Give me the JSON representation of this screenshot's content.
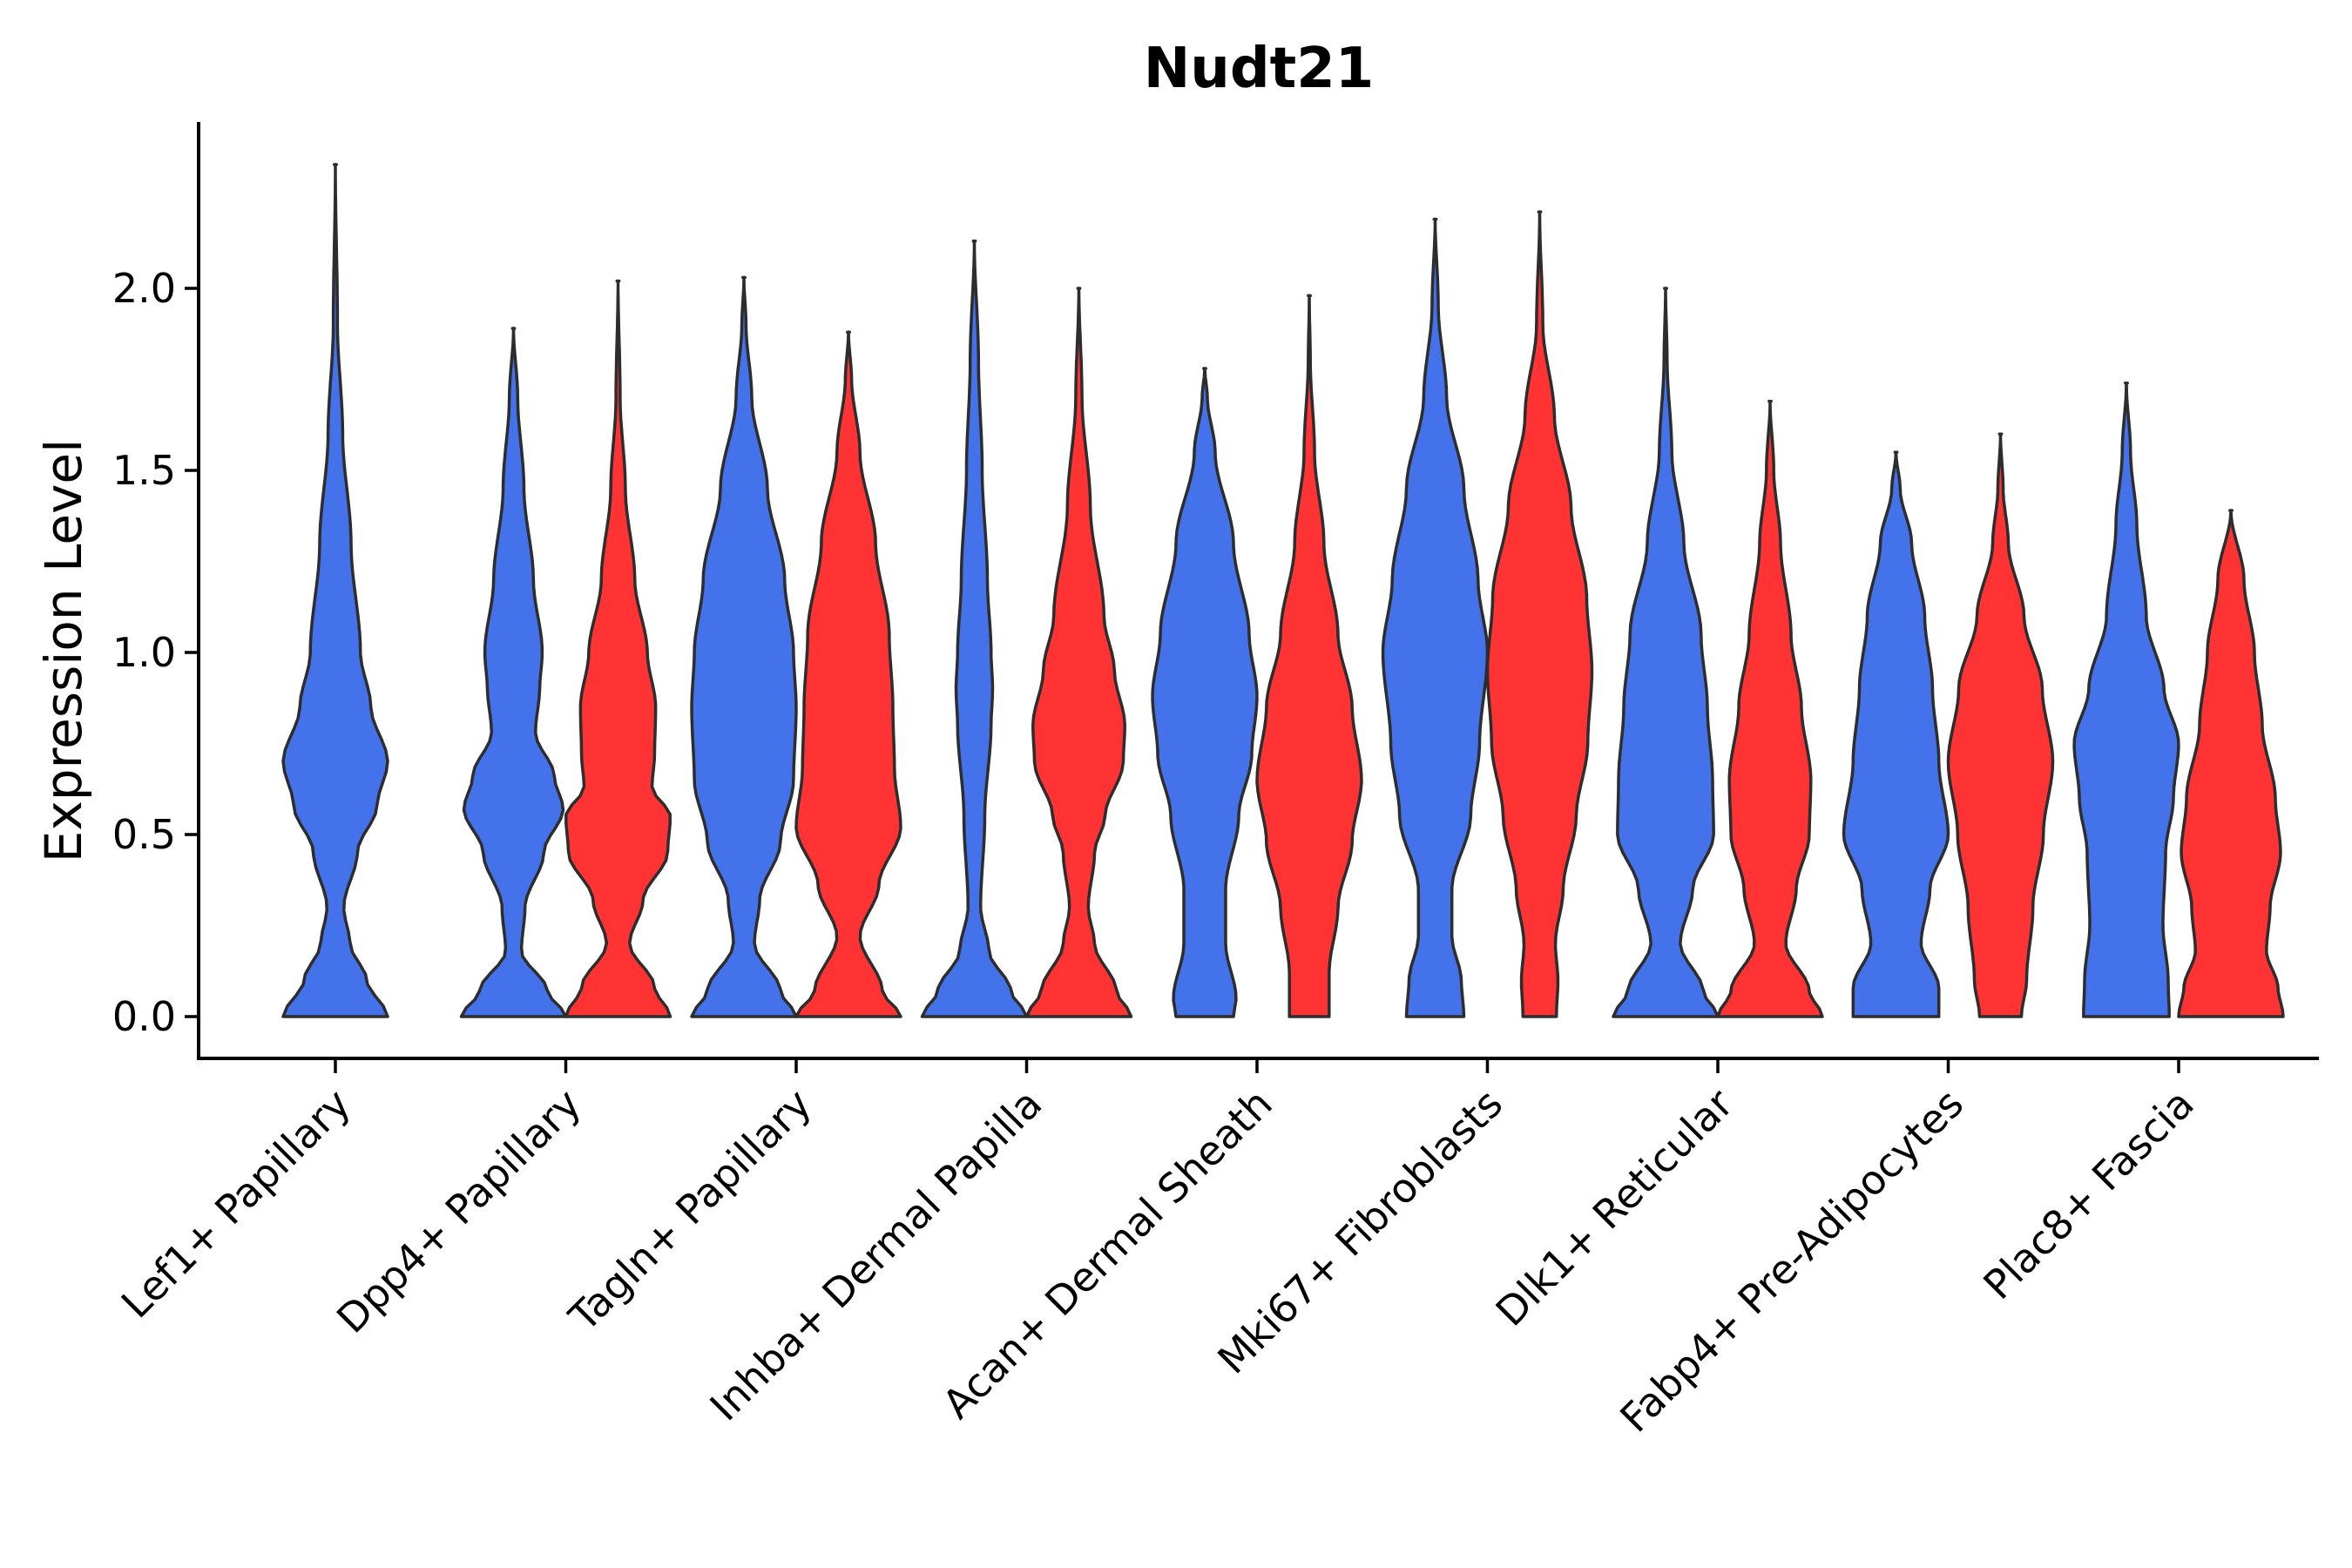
{
  "chart_data": {
    "type": "violin",
    "title": "Nudt21",
    "xlabel": "",
    "ylabel": "Expression Level",
    "ylim": [
      -0.12,
      2.45
    ],
    "yticks": [
      "0.0",
      "0.5",
      "1.0",
      "1.5",
      "2.0"
    ],
    "grid": false,
    "legend": "none",
    "series_colors": {
      "blue": "#4472EA",
      "red": "#FF3333"
    },
    "categories": [
      "Lef1+ Papillary",
      "Dpp4+ Papillary",
      "Tagln+ Papillary",
      "Inhba+ Dermal Papilla",
      "Acan+ Dermal Sheath",
      "Mki67+ Fibroblasts",
      "Dlk1+ Reticular",
      "Fabp4+ Pre-Adipocytes",
      "Plac8+ Fascia"
    ],
    "violins": [
      {
        "category": "Lef1+ Papillary",
        "series": "blue",
        "max": 2.34,
        "profile": [
          [
            0,
            1
          ],
          [
            0.1,
            0.6
          ],
          [
            0.2,
            0.28
          ],
          [
            0.3,
            0.16
          ],
          [
            0.45,
            0.42
          ],
          [
            0.58,
            0.8
          ],
          [
            0.7,
            1
          ],
          [
            0.85,
            0.68
          ],
          [
            1.0,
            0.48
          ],
          [
            1.3,
            0.3
          ],
          [
            1.6,
            0.14
          ],
          [
            1.9,
            0.04
          ],
          [
            2.34,
            0
          ]
        ]
      },
      {
        "category": "Dpp4+ Papillary",
        "series": "blue",
        "max": 1.89,
        "profile": [
          [
            0,
            1
          ],
          [
            0.07,
            0.65
          ],
          [
            0.18,
            0.15
          ],
          [
            0.3,
            0.22
          ],
          [
            0.45,
            0.58
          ],
          [
            0.57,
            0.95
          ],
          [
            0.66,
            0.78
          ],
          [
            0.78,
            0.42
          ],
          [
            0.9,
            0.5
          ],
          [
            1.0,
            0.55
          ],
          [
            1.2,
            0.38
          ],
          [
            1.45,
            0.2
          ],
          [
            1.7,
            0.08
          ],
          [
            1.89,
            0
          ]
        ]
      },
      {
        "category": "Dpp4+ Papillary",
        "series": "red",
        "max": 2.02,
        "profile": [
          [
            0,
            1
          ],
          [
            0.08,
            0.7
          ],
          [
            0.2,
            0.22
          ],
          [
            0.32,
            0.48
          ],
          [
            0.45,
            0.95
          ],
          [
            0.55,
            1
          ],
          [
            0.63,
            0.65
          ],
          [
            0.72,
            0.7
          ],
          [
            0.85,
            0.72
          ],
          [
            1.0,
            0.56
          ],
          [
            1.2,
            0.32
          ],
          [
            1.45,
            0.14
          ],
          [
            1.7,
            0.04
          ],
          [
            2.02,
            0
          ]
        ]
      },
      {
        "category": "Tagln+ Papillary",
        "series": "blue",
        "max": 2.03,
        "profile": [
          [
            0,
            1
          ],
          [
            0.07,
            0.7
          ],
          [
            0.2,
            0.2
          ],
          [
            0.32,
            0.3
          ],
          [
            0.48,
            0.7
          ],
          [
            0.65,
            0.95
          ],
          [
            0.85,
            1
          ],
          [
            1.0,
            0.95
          ],
          [
            1.2,
            0.78
          ],
          [
            1.45,
            0.45
          ],
          [
            1.7,
            0.15
          ],
          [
            1.9,
            0.04
          ],
          [
            2.03,
            0
          ]
        ]
      },
      {
        "category": "Tagln+ Papillary",
        "series": "red",
        "max": 1.88,
        "profile": [
          [
            0,
            1
          ],
          [
            0.07,
            0.65
          ],
          [
            0.22,
            0.22
          ],
          [
            0.36,
            0.58
          ],
          [
            0.52,
            1
          ],
          [
            0.68,
            0.88
          ],
          [
            0.85,
            0.85
          ],
          [
            1.05,
            0.78
          ],
          [
            1.3,
            0.52
          ],
          [
            1.55,
            0.22
          ],
          [
            1.75,
            0.06
          ],
          [
            1.88,
            0
          ]
        ]
      },
      {
        "category": "Inhba+ Dermal Papilla",
        "series": "blue",
        "max": 2.13,
        "profile": [
          [
            0,
            1
          ],
          [
            0.07,
            0.7
          ],
          [
            0.18,
            0.28
          ],
          [
            0.3,
            0.12
          ],
          [
            0.55,
            0.2
          ],
          [
            0.8,
            0.32
          ],
          [
            0.9,
            0.35
          ],
          [
            1.0,
            0.32
          ],
          [
            1.2,
            0.25
          ],
          [
            1.5,
            0.15
          ],
          [
            1.8,
            0.08
          ],
          [
            2.13,
            0
          ]
        ]
      },
      {
        "category": "Inhba+ Dermal Papilla",
        "series": "red",
        "max": 2.0,
        "profile": [
          [
            0,
            1
          ],
          [
            0.07,
            0.72
          ],
          [
            0.2,
            0.3
          ],
          [
            0.3,
            0.18
          ],
          [
            0.45,
            0.3
          ],
          [
            0.55,
            0.5
          ],
          [
            0.7,
            0.85
          ],
          [
            0.8,
            0.88
          ],
          [
            0.95,
            0.68
          ],
          [
            1.1,
            0.48
          ],
          [
            1.4,
            0.22
          ],
          [
            1.7,
            0.06
          ],
          [
            2.0,
            0
          ]
        ]
      },
      {
        "category": "Acan+ Dermal Sheath",
        "series": "blue",
        "max": 1.78,
        "profile": [
          [
            0,
            0.55
          ],
          [
            0.05,
            0.6
          ],
          [
            0.2,
            0.4
          ],
          [
            0.35,
            0.4
          ],
          [
            0.55,
            0.65
          ],
          [
            0.72,
            0.9
          ],
          [
            0.88,
            1
          ],
          [
            1.05,
            0.85
          ],
          [
            1.3,
            0.55
          ],
          [
            1.55,
            0.2
          ],
          [
            1.7,
            0.05
          ],
          [
            1.78,
            0
          ]
        ]
      },
      {
        "category": "Acan+ Dermal Sheath",
        "series": "red",
        "max": 1.98,
        "profile": [
          [
            0,
            0.38
          ],
          [
            0.12,
            0.38
          ],
          [
            0.3,
            0.55
          ],
          [
            0.48,
            0.82
          ],
          [
            0.65,
            1
          ],
          [
            0.85,
            0.82
          ],
          [
            1.05,
            0.55
          ],
          [
            1.3,
            0.28
          ],
          [
            1.55,
            0.1
          ],
          [
            1.8,
            0.02
          ],
          [
            1.98,
            0
          ]
        ]
      },
      {
        "category": "Mki67+ Fibroblasts",
        "series": "blue",
        "max": 2.19,
        "profile": [
          [
            0,
            0.55
          ],
          [
            0.1,
            0.5
          ],
          [
            0.22,
            0.32
          ],
          [
            0.35,
            0.32
          ],
          [
            0.55,
            0.68
          ],
          [
            0.75,
            0.85
          ],
          [
            1.0,
            1
          ],
          [
            1.2,
            0.82
          ],
          [
            1.45,
            0.55
          ],
          [
            1.7,
            0.22
          ],
          [
            1.95,
            0.06
          ],
          [
            2.19,
            0
          ]
        ]
      },
      {
        "category": "Mki67+ Fibroblasts",
        "series": "red",
        "max": 2.21,
        "profile": [
          [
            0,
            0.32
          ],
          [
            0.1,
            0.35
          ],
          [
            0.2,
            0.3
          ],
          [
            0.35,
            0.45
          ],
          [
            0.55,
            0.7
          ],
          [
            0.75,
            0.92
          ],
          [
            0.95,
            1
          ],
          [
            1.15,
            0.9
          ],
          [
            1.4,
            0.6
          ],
          [
            1.65,
            0.28
          ],
          [
            1.9,
            0.06
          ],
          [
            2.21,
            0
          ]
        ]
      },
      {
        "category": "Dlk1+ Reticular",
        "series": "blue",
        "max": 2.0,
        "profile": [
          [
            0,
            1
          ],
          [
            0.07,
            0.72
          ],
          [
            0.2,
            0.28
          ],
          [
            0.35,
            0.52
          ],
          [
            0.5,
            0.92
          ],
          [
            0.65,
            0.9
          ],
          [
            0.85,
            0.8
          ],
          [
            1.05,
            0.68
          ],
          [
            1.3,
            0.35
          ],
          [
            1.55,
            0.12
          ],
          [
            1.8,
            0.03
          ],
          [
            2.0,
            0
          ]
        ]
      },
      {
        "category": "Dlk1+ Reticular",
        "series": "red",
        "max": 1.69,
        "profile": [
          [
            0,
            1
          ],
          [
            0.07,
            0.75
          ],
          [
            0.2,
            0.3
          ],
          [
            0.35,
            0.5
          ],
          [
            0.5,
            0.75
          ],
          [
            0.65,
            0.78
          ],
          [
            0.85,
            0.6
          ],
          [
            1.05,
            0.4
          ],
          [
            1.3,
            0.2
          ],
          [
            1.5,
            0.07
          ],
          [
            1.69,
            0
          ]
        ]
      },
      {
        "category": "Fabp4+ Pre-Adipocytes",
        "series": "blue",
        "max": 1.55,
        "profile": [
          [
            0,
            0.82
          ],
          [
            0.08,
            0.82
          ],
          [
            0.2,
            0.48
          ],
          [
            0.35,
            0.65
          ],
          [
            0.5,
            1
          ],
          [
            0.7,
            0.82
          ],
          [
            0.9,
            0.7
          ],
          [
            1.1,
            0.55
          ],
          [
            1.3,
            0.3
          ],
          [
            1.45,
            0.08
          ],
          [
            1.55,
            0
          ]
        ]
      },
      {
        "category": "Fabp4+ Pre-Adipocytes",
        "series": "red",
        "max": 1.6,
        "profile": [
          [
            0,
            0.4
          ],
          [
            0.1,
            0.5
          ],
          [
            0.3,
            0.62
          ],
          [
            0.5,
            0.82
          ],
          [
            0.7,
            1
          ],
          [
            0.9,
            0.8
          ],
          [
            1.1,
            0.45
          ],
          [
            1.3,
            0.15
          ],
          [
            1.45,
            0.05
          ],
          [
            1.6,
            0
          ]
        ]
      },
      {
        "category": "Plac8+ Fascia",
        "series": "blue",
        "max": 1.74,
        "profile": [
          [
            0,
            0.82
          ],
          [
            0.1,
            0.8
          ],
          [
            0.25,
            0.7
          ],
          [
            0.45,
            0.75
          ],
          [
            0.6,
            0.9
          ],
          [
            0.75,
            1
          ],
          [
            0.9,
            0.72
          ],
          [
            1.1,
            0.38
          ],
          [
            1.35,
            0.2
          ],
          [
            1.55,
            0.08
          ],
          [
            1.74,
            0
          ]
        ]
      },
      {
        "category": "Plac8+ Fascia",
        "series": "red",
        "max": 1.39,
        "profile": [
          [
            0,
            1
          ],
          [
            0.08,
            0.9
          ],
          [
            0.18,
            0.68
          ],
          [
            0.3,
            0.75
          ],
          [
            0.45,
            0.95
          ],
          [
            0.6,
            0.85
          ],
          [
            0.8,
            0.6
          ],
          [
            1.0,
            0.45
          ],
          [
            1.2,
            0.25
          ],
          [
            1.39,
            0
          ]
        ]
      }
    ]
  }
}
